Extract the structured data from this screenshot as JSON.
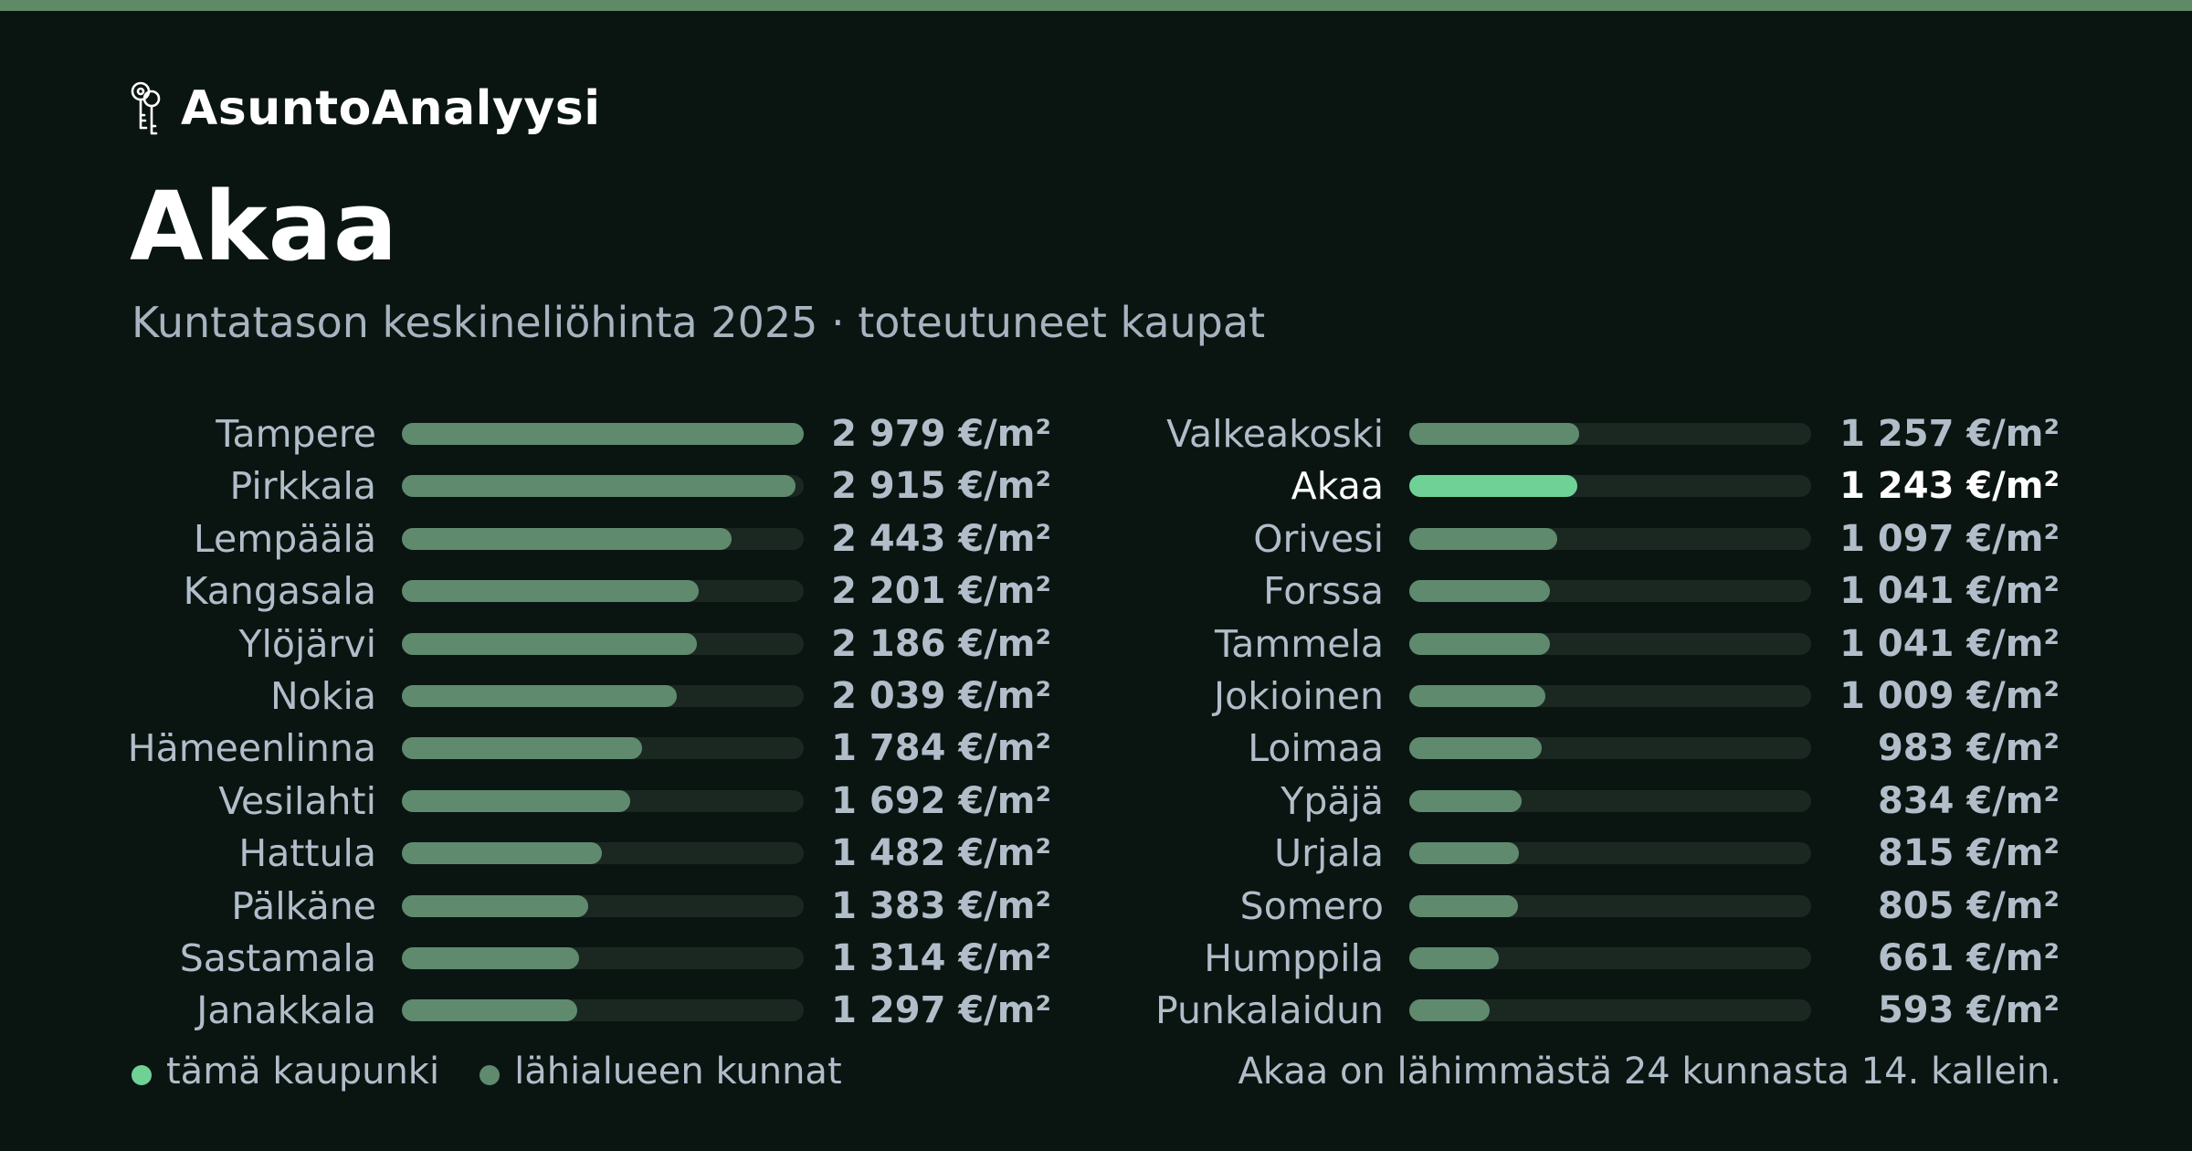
{
  "brand": {
    "name": "AsuntoAnalyysi",
    "icon": "keys-icon"
  },
  "header": {
    "title": "Akaa",
    "subtitle": "Kuntatason keskineliöhinta 2025 · toteutuneet kaupat"
  },
  "colors": {
    "accent": "#6fd196",
    "bar": "#5f8a6e",
    "track": "#1b2822",
    "background": "#0a1512",
    "topbar": "#5f8a66"
  },
  "chart_data": {
    "type": "bar",
    "orientation": "horizontal",
    "unit": "€/m²",
    "xlim": [
      0,
      2979
    ],
    "highlight": "Akaa",
    "items": [
      {
        "name": "Tampere",
        "value": 2979,
        "label": "2 979 €/m²"
      },
      {
        "name": "Pirkkala",
        "value": 2915,
        "label": "2 915 €/m²"
      },
      {
        "name": "Lempäälä",
        "value": 2443,
        "label": "2 443 €/m²"
      },
      {
        "name": "Kangasala",
        "value": 2201,
        "label": "2 201 €/m²"
      },
      {
        "name": "Ylöjärvi",
        "value": 2186,
        "label": "2 186 €/m²"
      },
      {
        "name": "Nokia",
        "value": 2039,
        "label": "2 039 €/m²"
      },
      {
        "name": "Hämeenlinna",
        "value": 1784,
        "label": "1 784 €/m²"
      },
      {
        "name": "Vesilahti",
        "value": 1692,
        "label": "1 692 €/m²"
      },
      {
        "name": "Hattula",
        "value": 1482,
        "label": "1 482 €/m²"
      },
      {
        "name": "Pälkäne",
        "value": 1383,
        "label": "1 383 €/m²"
      },
      {
        "name": "Sastamala",
        "value": 1314,
        "label": "1 314 €/m²"
      },
      {
        "name": "Janakkala",
        "value": 1297,
        "label": "1 297 €/m²"
      },
      {
        "name": "Valkeakoski",
        "value": 1257,
        "label": "1 257 €/m²"
      },
      {
        "name": "Akaa",
        "value": 1243,
        "label": "1 243 €/m²"
      },
      {
        "name": "Orivesi",
        "value": 1097,
        "label": "1 097 €/m²"
      },
      {
        "name": "Forssa",
        "value": 1041,
        "label": "1 041 €/m²"
      },
      {
        "name": "Tammela",
        "value": 1041,
        "label": "1 041 €/m²"
      },
      {
        "name": "Jokioinen",
        "value": 1009,
        "label": "1 009 €/m²"
      },
      {
        "name": "Loimaa",
        "value": 983,
        "label": "983 €/m²"
      },
      {
        "name": "Ypäjä",
        "value": 834,
        "label": "834 €/m²"
      },
      {
        "name": "Urjala",
        "value": 815,
        "label": "815 €/m²"
      },
      {
        "name": "Somero",
        "value": 805,
        "label": "805 €/m²"
      },
      {
        "name": "Humppila",
        "value": 661,
        "label": "661 €/m²"
      },
      {
        "name": "Punkalaidun",
        "value": 593,
        "label": "593 €/m²"
      }
    ]
  },
  "legend": {
    "current": "tämä kaupunki",
    "nearby": "lähialueen kunnat"
  },
  "footnote": "Akaa on lähimmästä 24 kunnasta 14. kallein."
}
